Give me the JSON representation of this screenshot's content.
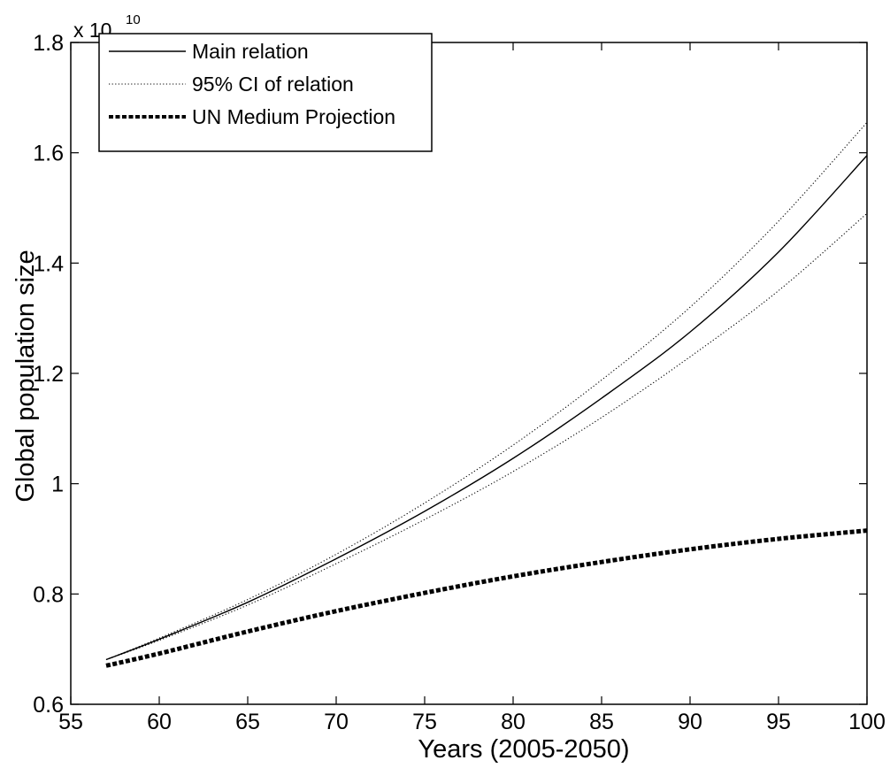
{
  "chart_data": {
    "type": "line",
    "title": "",
    "xlabel": "Years (2005-2050)",
    "ylabel": "Global population size",
    "xlim": [
      55,
      100
    ],
    "ylim": [
      0.6,
      1.8
    ],
    "y_multiplier": {
      "base": "x 10",
      "power": "10"
    },
    "x_ticks": [
      55,
      60,
      65,
      70,
      75,
      80,
      85,
      90,
      95,
      100
    ],
    "x_tick_labels": [
      "55",
      "60",
      "65",
      "70",
      "75",
      "80",
      "85",
      "90",
      "95",
      "100"
    ],
    "y_ticks": [
      0.6,
      0.8,
      1.0,
      1.2,
      1.4,
      1.6,
      1.8
    ],
    "y_tick_labels": [
      "0.6",
      "0.8",
      "1",
      "1.2",
      "1.4",
      "1.6",
      "1.8"
    ],
    "grid": false,
    "legend_position": "top-left",
    "x": [
      57,
      60,
      65,
      70,
      75,
      80,
      85,
      90,
      95,
      100
    ],
    "series": [
      {
        "name": "Main relation",
        "style": "solid",
        "color": "#000000",
        "values": [
          0.681,
          0.718,
          0.785,
          0.864,
          0.95,
          1.046,
          1.155,
          1.275,
          1.42,
          1.595
        ]
      },
      {
        "name": "95% CI of relation",
        "style": "dotted",
        "color": "#000000",
        "legend": true,
        "values": [
          0.681,
          0.72,
          0.79,
          0.872,
          0.965,
          1.07,
          1.188,
          1.32,
          1.476,
          1.655
        ]
      },
      {
        "name": "95% CI of relation",
        "style": "dotted",
        "color": "#000000",
        "legend": false,
        "values": [
          0.681,
          0.716,
          0.78,
          0.855,
          0.935,
          1.022,
          1.12,
          1.23,
          1.35,
          1.49
        ]
      },
      {
        "name": "UN Medium Projection",
        "style": "dashed-thick",
        "color": "#000000",
        "values": [
          0.67,
          0.692,
          0.732,
          0.769,
          0.802,
          0.832,
          0.858,
          0.881,
          0.9,
          0.915
        ]
      }
    ]
  }
}
